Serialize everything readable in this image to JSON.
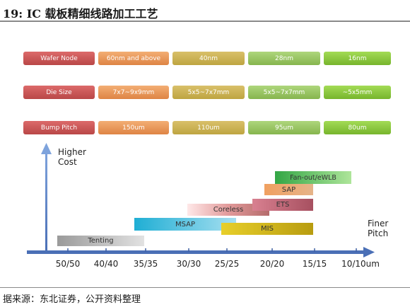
{
  "title": "19:  IC 载板精细线路加工工艺",
  "source": "据来源：东北证券，公开资料整理",
  "table": {
    "rows": [
      {
        "label": "Wafer Node",
        "values": [
          "60nm and above",
          "40nm",
          "28nm",
          "16nm"
        ]
      },
      {
        "label": "Die Size",
        "values": [
          "7x7~9x9mm",
          "5x5~7x7mm",
          "5x5~7x7mm",
          "~5x5mm"
        ]
      },
      {
        "label": "Bump Pitch",
        "values": [
          "150um",
          "110um",
          "95um",
          "80um"
        ]
      }
    ]
  },
  "axis": {
    "y_label_line1": "Higher",
    "y_label_line2": "Cost",
    "x_label_line1": "Finer",
    "x_label_line2": "Pitch",
    "ticks": [
      "50/50",
      "40/40",
      "35/35",
      "30/30",
      "25/25",
      "20/20",
      "15/15",
      "10/10um"
    ]
  },
  "technologies": [
    {
      "label": "Tenting",
      "from": "50/50",
      "to": "35/35"
    },
    {
      "label": "MSAP",
      "from": "35/35",
      "to": "25/25"
    },
    {
      "label": "Coreless",
      "from": "30/30",
      "to": "20/20"
    },
    {
      "label": "MIS",
      "from": "25/25",
      "to": "15/15"
    },
    {
      "label": "ETS",
      "from": "20/20",
      "to": "15/15"
    },
    {
      "label": "SAP",
      "from": "20/20",
      "to": "15/15"
    },
    {
      "label": "Fan-out/eWLB",
      "from": "20/20",
      "to": "10/10um"
    }
  ]
}
